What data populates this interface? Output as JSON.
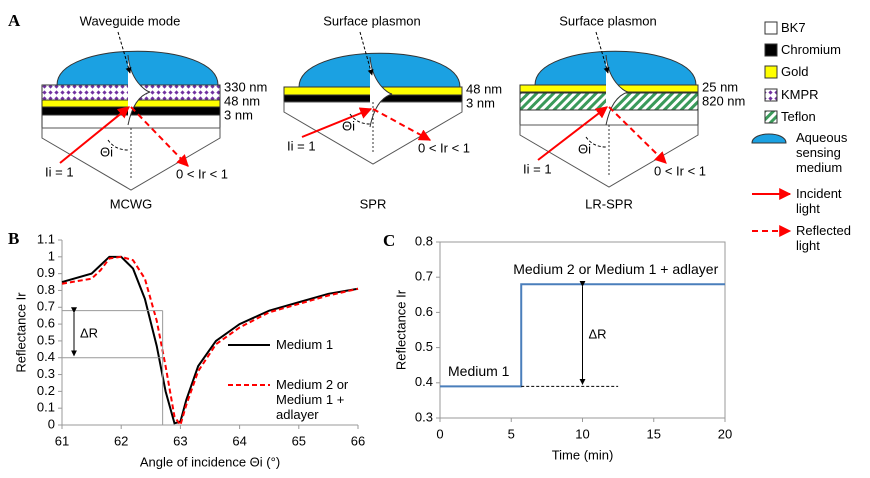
{
  "diagram": {
    "label": "A",
    "panels": [
      {
        "mode": "Waveguide mode",
        "thicknesses": [
          "330 nm",
          "48 nm",
          "3 nm"
        ],
        "angle": "Θi",
        "incident": "Ii = 1",
        "reflected": "0 < Ir < 1",
        "name": "MCWG"
      },
      {
        "mode": "Surface plasmon",
        "thicknesses": [
          "48 nm",
          "3 nm"
        ],
        "angle": "Θi",
        "incident": "Ii = 1",
        "reflected": "0 < Ir < 1",
        "name": "SPR"
      },
      {
        "mode": "Surface plasmon",
        "thicknesses": [
          "25 nm",
          "820 nm"
        ],
        "angle": "Θi",
        "incident": "Ii = 1",
        "reflected": "0 < Ir < 1",
        "name": "LR-SPR"
      }
    ]
  },
  "legend": [
    "BK7",
    "Chromium",
    "Gold",
    "KMPR",
    "Teflon",
    "Aqueous sensing medium",
    "Incident light",
    "Reflected light"
  ],
  "chart_data": [
    {
      "type": "line",
      "label": "B",
      "x_label": "Angle of incidence Θi (°)",
      "y_label": "Reflectance Ir",
      "x": [
        61,
        61.5,
        61.65,
        61.8,
        62,
        62.2,
        62.4,
        62.6,
        62.75,
        62.9,
        63,
        63.1,
        63.3,
        63.6,
        64,
        64.5,
        65,
        65.5,
        66
      ],
      "series": [
        {
          "name": "Medium 1",
          "color": "#000000",
          "dashed": false,
          "values": [
            0.85,
            0.9,
            0.95,
            1.0,
            1.0,
            0.93,
            0.75,
            0.47,
            0.2,
            0.01,
            0.02,
            0.15,
            0.35,
            0.5,
            0.6,
            0.68,
            0.73,
            0.78,
            0.81
          ]
        },
        {
          "name": "Medium 2 or Medium 1 + adlayer",
          "color": "#ff0000",
          "dashed": true,
          "values": [
            0.84,
            0.87,
            0.92,
            0.99,
            1.0,
            0.98,
            0.87,
            0.62,
            0.35,
            0.05,
            0.0,
            0.12,
            0.32,
            0.48,
            0.58,
            0.67,
            0.72,
            0.77,
            0.81
          ]
        }
      ],
      "ref_y": [
        0.68,
        0.4
      ],
      "ref_x": 62.7,
      "delta_label": "ΔR",
      "xlim": [
        61,
        66
      ],
      "xticks": [
        61,
        62,
        63,
        64,
        65,
        66
      ],
      "ylim": [
        0,
        1.1
      ],
      "yticks": [
        0,
        0.1,
        0.2,
        0.3,
        0.4,
        0.5,
        0.6,
        0.7,
        0.8,
        0.9,
        1,
        1.1
      ]
    },
    {
      "type": "line",
      "label": "C",
      "x_label": "Time (min)",
      "y_label": "Reflectance Ir",
      "x": [
        0,
        5.7,
        5.7,
        20
      ],
      "series": [
        {
          "color": "#4a7ebb",
          "values": [
            0.39,
            0.39,
            0.68,
            0.68
          ]
        }
      ],
      "baseline": {
        "value": 0.39,
        "x": [
          5.7,
          12.5
        ]
      },
      "delta_x": 10,
      "delta_label": "ΔR",
      "annotations": [
        "Medium 1",
        "Medium 2 or Medium 1 + adlayer"
      ],
      "xlim": [
        0,
        20
      ],
      "xticks": [
        0,
        5,
        10,
        15,
        20
      ],
      "ylim": [
        0.3,
        0.8
      ],
      "yticks": [
        0.3,
        0.4,
        0.5,
        0.6,
        0.7,
        0.8
      ]
    }
  ]
}
